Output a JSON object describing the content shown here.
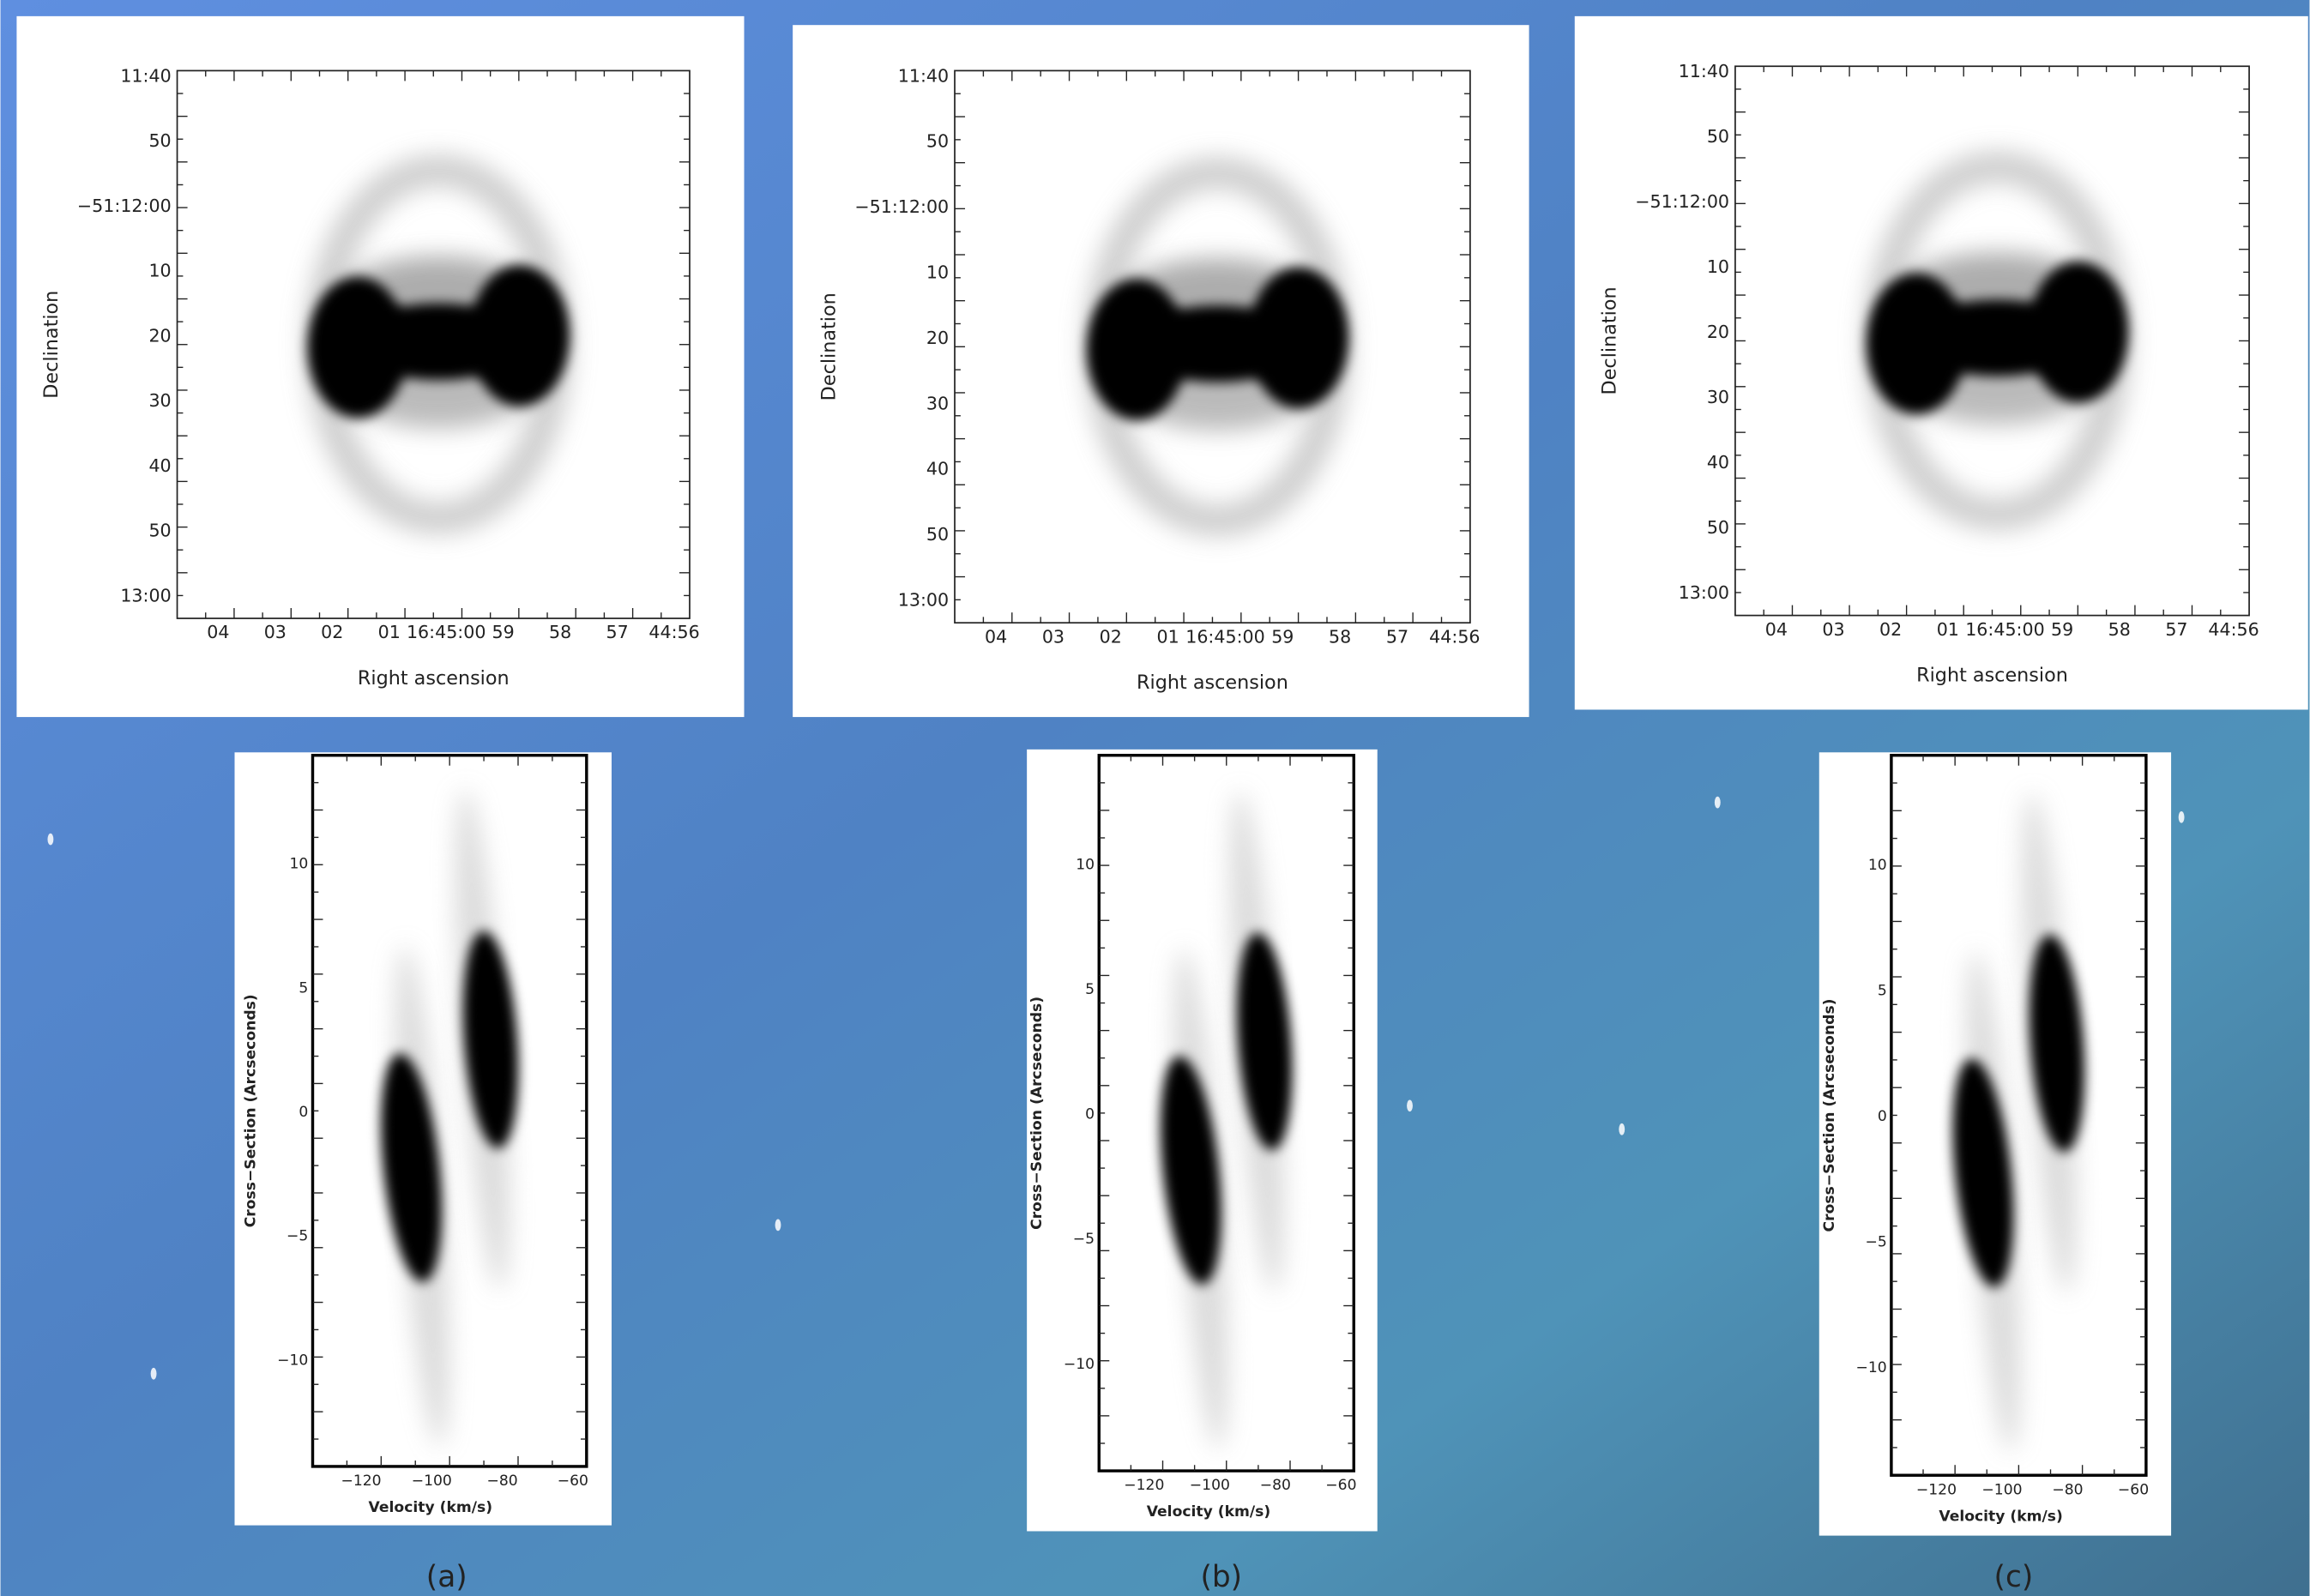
{
  "panels": [
    {
      "top": {
        "ylabel": "Declination",
        "xlabel": "Right ascension",
        "yticks": [
          "11:40",
          "50",
          "−51:12:00",
          "10",
          "20",
          "30",
          "40",
          "50",
          "13:00"
        ],
        "xticks": [
          "04",
          "03",
          "02",
          "01",
          "16:45:00",
          "59",
          "58",
          "57",
          "44:56"
        ]
      },
      "bottom": {
        "ylabel": "Cross−Section (Arcseconds)",
        "xlabel": "Velocity (km/s)",
        "yticks": [
          "10",
          "5",
          "0",
          "−5",
          "−10"
        ],
        "xticks": [
          "−120",
          "−100",
          "−80",
          "−60"
        ]
      },
      "caption": "(a)"
    },
    {
      "top": {
        "ylabel": "Declination",
        "xlabel": "Right ascension",
        "yticks": [
          "11:40",
          "50",
          "−51:12:00",
          "10",
          "20",
          "30",
          "40",
          "50",
          "13:00"
        ],
        "xticks": [
          "04",
          "03",
          "02",
          "01",
          "16:45:00",
          "59",
          "58",
          "57",
          "44:56"
        ]
      },
      "bottom": {
        "ylabel": "Cross−Section (Arcseconds)",
        "xlabel": "Velocity (km/s)",
        "yticks": [
          "10",
          "5",
          "0",
          "−5",
          "−10"
        ],
        "xticks": [
          "−120",
          "−100",
          "−80",
          "−60"
        ]
      },
      "caption": "(b)"
    },
    {
      "top": {
        "ylabel": "Declination",
        "xlabel": "Right ascension",
        "yticks": [
          "11:40",
          "50",
          "−51:12:00",
          "10",
          "20",
          "30",
          "40",
          "50",
          "13:00"
        ],
        "xticks": [
          "04",
          "03",
          "02",
          "01",
          "16:45:00",
          "59",
          "58",
          "57",
          "44:56"
        ]
      },
      "bottom": {
        "ylabel": "Cross−Section (Arcseconds)",
        "xlabel": "Velocity (km/s)",
        "yticks": [
          "10",
          "5",
          "0",
          "−5",
          "−10"
        ],
        "xticks": [
          "−120",
          "−100",
          "−80",
          "−60"
        ]
      },
      "caption": "(c)"
    }
  ]
}
